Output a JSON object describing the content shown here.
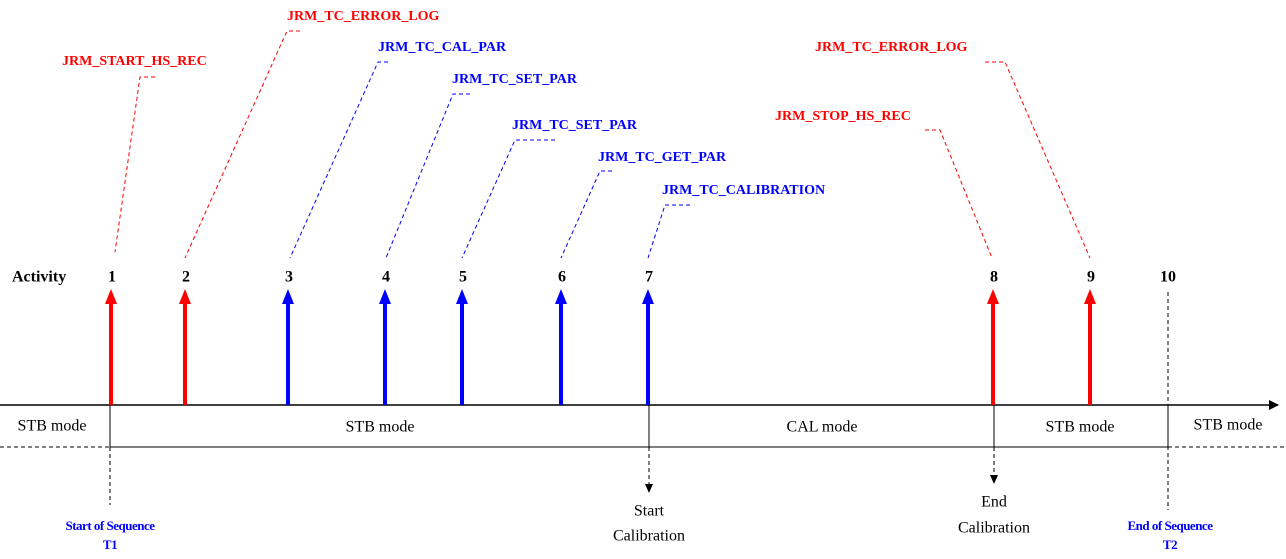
{
  "activity_label": "Activity",
  "activities": [
    {
      "label": "1",
      "color": "#ff0000"
    },
    {
      "label": "2",
      "color": "#ff0000"
    },
    {
      "label": "3",
      "color": "#0000ff"
    },
    {
      "label": "4",
      "color": "#0000ff"
    },
    {
      "label": "5",
      "color": "#0000ff"
    },
    {
      "label": "6",
      "color": "#0000ff"
    },
    {
      "label": "7",
      "color": "#0000ff"
    },
    {
      "label": "8",
      "color": "#ff0000"
    },
    {
      "label": "9",
      "color": "#ff0000"
    },
    {
      "label": "10",
      "color": null
    }
  ],
  "commands": [
    {
      "label": "JRM_START_HS_REC",
      "color": "#ff0000"
    },
    {
      "label": "JRM_TC_ERROR_LOG",
      "color": "#ff0000"
    },
    {
      "label": "JRM_TC_CAL_PAR",
      "color": "#0000ff"
    },
    {
      "label": "JRM_TC_SET_PAR",
      "color": "#0000ff"
    },
    {
      "label": "JRM_TC_SET_PAR",
      "color": "#0000ff"
    },
    {
      "label": "JRM_TC_GET_PAR",
      "color": "#0000ff"
    },
    {
      "label": "JRM_TC_CALIBRATION",
      "color": "#0000ff"
    },
    {
      "label": "JRM_STOP_HS_REC",
      "color": "#ff0000"
    },
    {
      "label": "JRM_TC_ERROR_LOG",
      "color": "#ff0000"
    }
  ],
  "modes": [
    "STB mode",
    "STB mode",
    "CAL mode",
    "STB mode",
    "STB mode"
  ],
  "events": {
    "start_sequence": {
      "title": "Start of Sequence",
      "time": "T1"
    },
    "start_calibration": [
      "Start",
      "Calibration"
    ],
    "end_calibration": [
      "End",
      "Calibration"
    ],
    "end_sequence": {
      "title": "End of Sequence",
      "time": "T2"
    }
  }
}
